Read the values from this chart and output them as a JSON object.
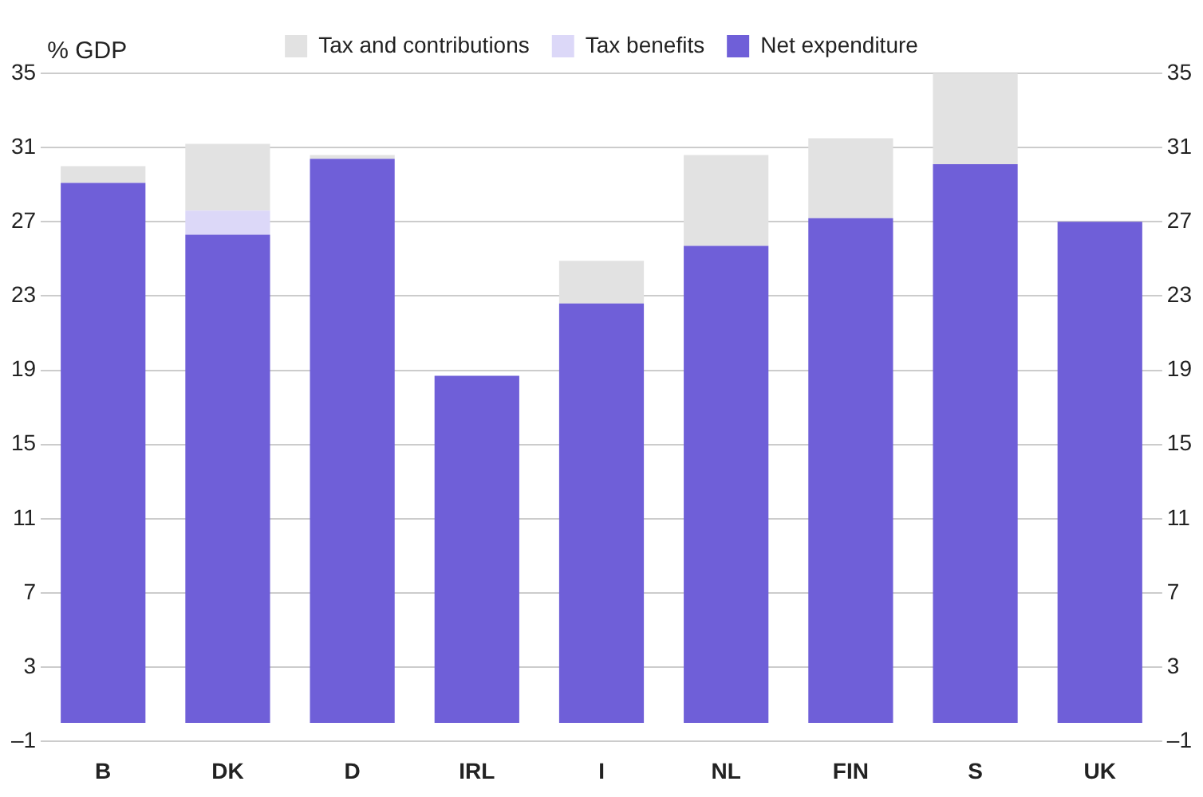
{
  "chart_data": {
    "type": "bar",
    "stacked": true,
    "ylabel": "% GDP",
    "categories": [
      "B",
      "DK",
      "D",
      "IRL",
      "I",
      "NL",
      "FIN",
      "S",
      "UK"
    ],
    "series": [
      {
        "name": "Net expenditure",
        "color": "#6f5fd8",
        "values": [
          29.1,
          26.3,
          30.4,
          18.7,
          22.6,
          25.7,
          27.2,
          30.1,
          27.0
        ]
      },
      {
        "name": "Tax benefits",
        "color": "#dcd8f8",
        "values": [
          null,
          1.3,
          null,
          null,
          null,
          null,
          null,
          null,
          null
        ]
      },
      {
        "name": "Tax and contributions",
        "color": "#e2e2e2",
        "values": [
          0.9,
          3.6,
          0.2,
          null,
          2.3,
          4.9,
          4.3,
          4.9,
          null
        ]
      }
    ],
    "ylim": [
      -1,
      35
    ],
    "yticks": [
      {
        "value": -1,
        "label": "–1"
      },
      3,
      7,
      11,
      15,
      19,
      23,
      27,
      31,
      35
    ],
    "y2lim": [
      -1,
      35
    ],
    "y2ticks": [
      {
        "value": -1,
        "label": "–1"
      },
      3,
      7,
      11,
      15,
      19,
      23,
      27,
      31,
      35
    ],
    "grid": "y",
    "legend": "top"
  }
}
